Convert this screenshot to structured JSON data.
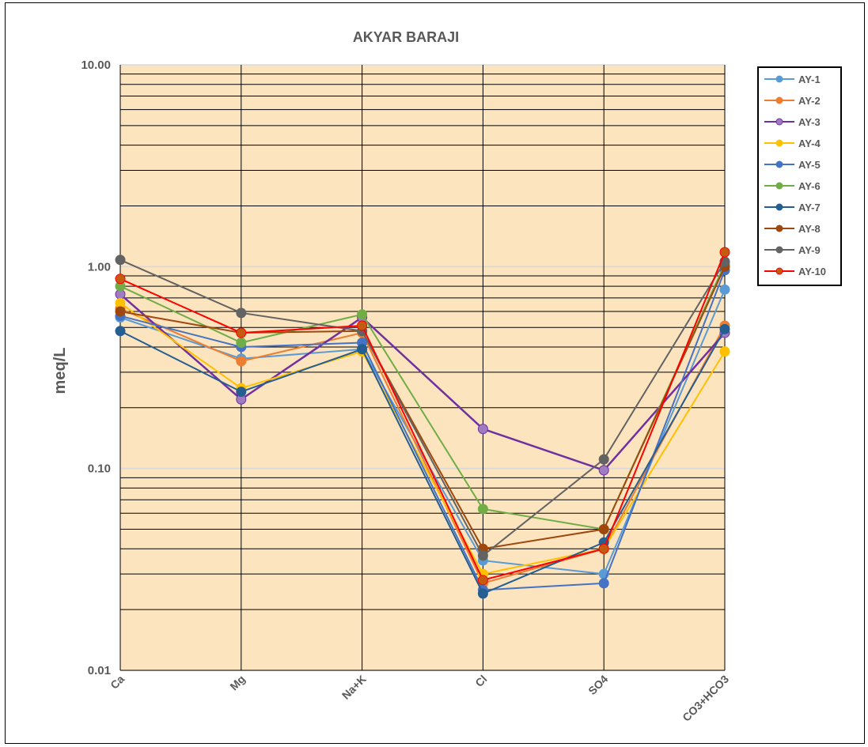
{
  "chart_data": {
    "type": "line",
    "title": "AKYAR  BARAJI",
    "ylabel": "meq/L",
    "xlabel": "",
    "yscale": "log",
    "ylim": [
      0.01,
      10
    ],
    "yticks": [
      "10.00",
      "1.00",
      "0.10",
      "0.01"
    ],
    "categories": [
      "Ca",
      "Mg",
      "Na+K",
      "Cl",
      "SO4",
      "CO3+HCO3"
    ],
    "grid": true,
    "plot_background": "#FCE4BE",
    "legend_position": "right",
    "series": [
      {
        "name": "AY-1",
        "color": "#5B9BD5",
        "marker_fill": "#5B9BD5",
        "values": [
          0.56,
          0.35,
          0.39,
          0.035,
          0.03,
          0.77
        ]
      },
      {
        "name": "AY-2",
        "color": "#ED7D31",
        "marker_fill": "#ED7D31",
        "values": [
          0.62,
          0.34,
          0.47,
          0.027,
          0.04,
          0.51
        ]
      },
      {
        "name": "AY-3",
        "color": "#7030A0",
        "marker_fill": "#9E7CC1",
        "values": [
          0.73,
          0.22,
          0.56,
          0.157,
          0.098,
          0.47
        ]
      },
      {
        "name": "AY-4",
        "color": "#FFC000",
        "marker_fill": "#FFC000",
        "values": [
          0.66,
          0.25,
          0.38,
          0.03,
          0.04,
          0.38
        ]
      },
      {
        "name": "AY-5",
        "color": "#4472C4",
        "marker_fill": "#4472C4",
        "values": [
          0.57,
          0.4,
          0.42,
          0.025,
          0.027,
          0.96
        ]
      },
      {
        "name": "AY-6",
        "color": "#70AD47",
        "marker_fill": "#70AD47",
        "values": [
          0.8,
          0.42,
          0.58,
          0.063,
          0.05,
          1.03
        ]
      },
      {
        "name": "AY-7",
        "color": "#255E91",
        "marker_fill": "#255E91",
        "values": [
          0.48,
          0.24,
          0.39,
          0.024,
          0.043,
          0.49
        ]
      },
      {
        "name": "AY-8",
        "color": "#9E480E",
        "marker_fill": "#9E480E",
        "values": [
          0.6,
          0.47,
          0.48,
          0.04,
          0.05,
          1.0
        ]
      },
      {
        "name": "AY-9",
        "color": "#636363",
        "marker_fill": "#636363",
        "values": [
          1.08,
          0.59,
          0.48,
          0.037,
          0.111,
          1.06
        ]
      },
      {
        "name": "AY-10",
        "color": "#FF0000",
        "marker_fill": "#C55A11",
        "values": [
          0.87,
          0.47,
          0.51,
          0.028,
          0.04,
          1.18
        ]
      }
    ]
  }
}
